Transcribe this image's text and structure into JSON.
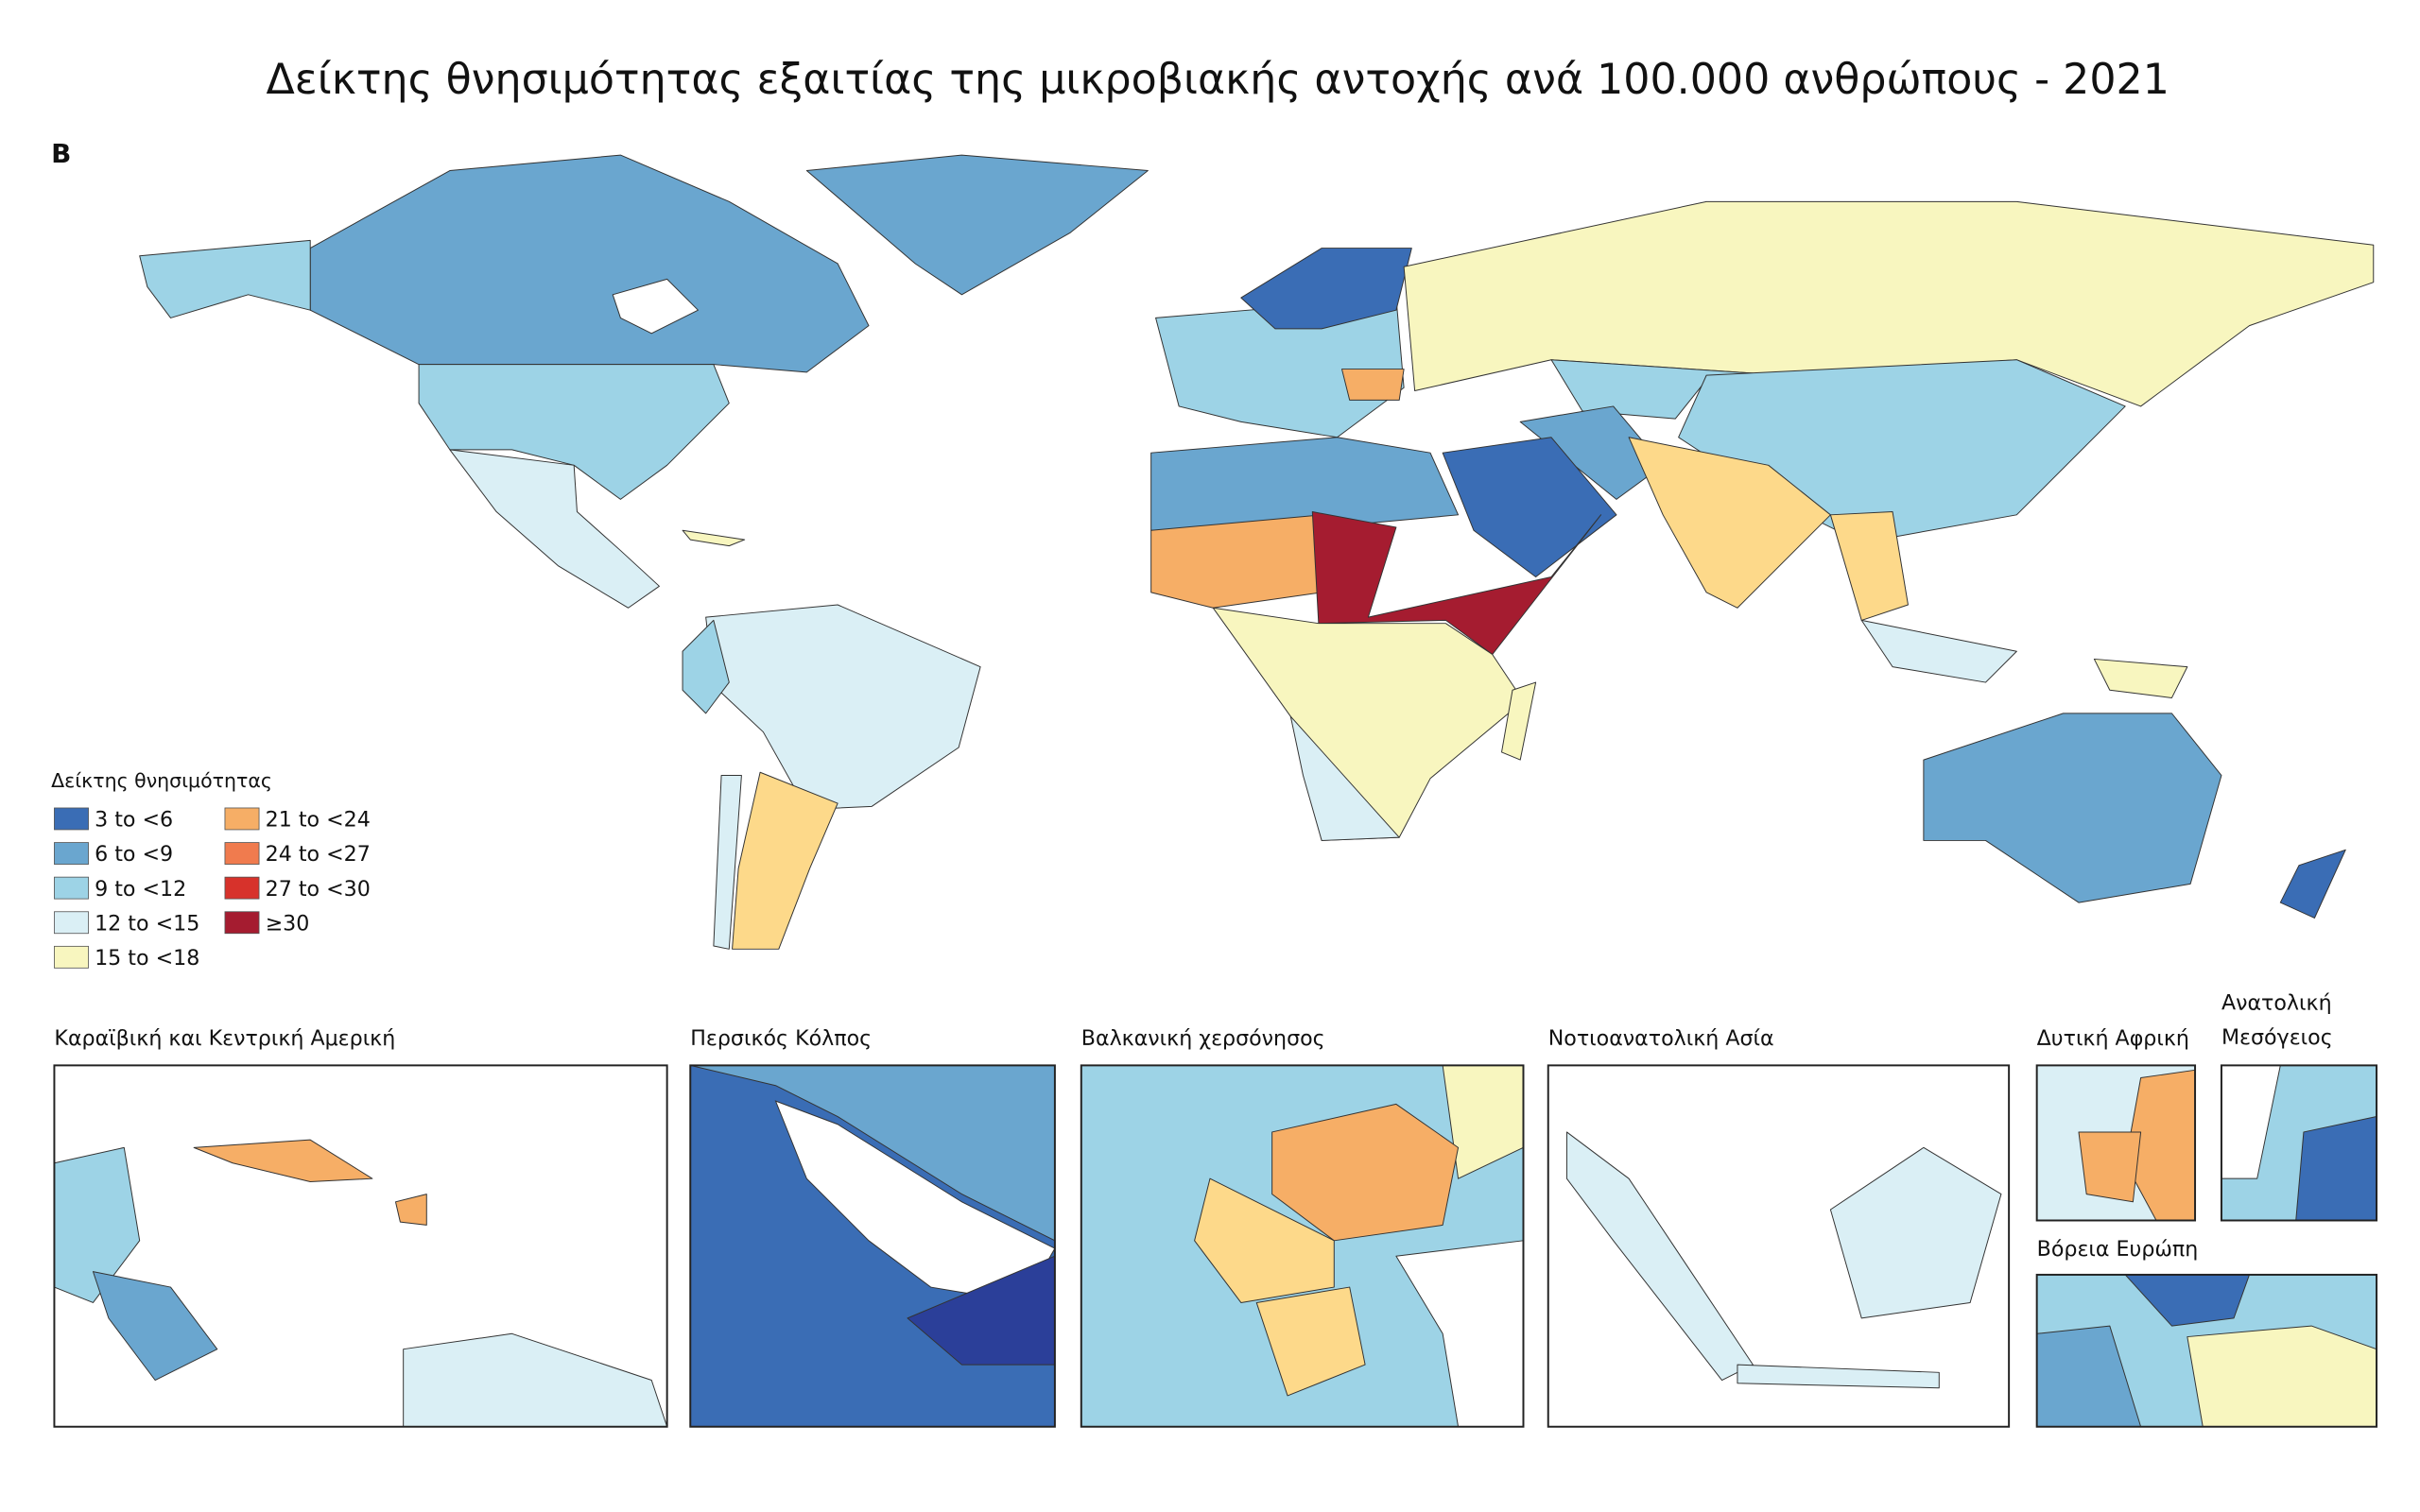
{
  "title": "Δείκτης θνησιμότητας εξαιτίας της μικροβιακής αντοχής ανά 100.000 ανθρώπους - 2021",
  "panel_label": "B",
  "legend": {
    "title": "Δείκτης θνησιμότητας",
    "items": [
      {
        "label": "3 to <6",
        "color": "#3a6db5"
      },
      {
        "label": "6 to <9",
        "color": "#6aa6cf"
      },
      {
        "label": "9 to <12",
        "color": "#9dd3e6"
      },
      {
        "label": "12 to <15",
        "color": "#daeff5"
      },
      {
        "label": "15 to <18",
        "color": "#f8f6bf"
      },
      {
        "label": "21 to <24",
        "color": "#f6ae66"
      },
      {
        "label": "24 to <27",
        "color": "#f07b4e"
      },
      {
        "label": "27 to <30",
        "color": "#d7322b"
      },
      {
        "label": "≥30",
        "color": "#a51c30"
      }
    ]
  },
  "insets": [
    {
      "title": "Καραϊβική και Κεντρική Αμερική"
    },
    {
      "title": "Περσικός Κόλπος"
    },
    {
      "title": "Βαλκανική χερσόνησος"
    },
    {
      "title": "Νοτιοανατολική Ασία"
    },
    {
      "title": "Δυτική Αφρική"
    },
    {
      "title": "Ανατολική Μεσόγειος"
    },
    {
      "title": "Βόρεια Ευρώπη"
    }
  ]
}
